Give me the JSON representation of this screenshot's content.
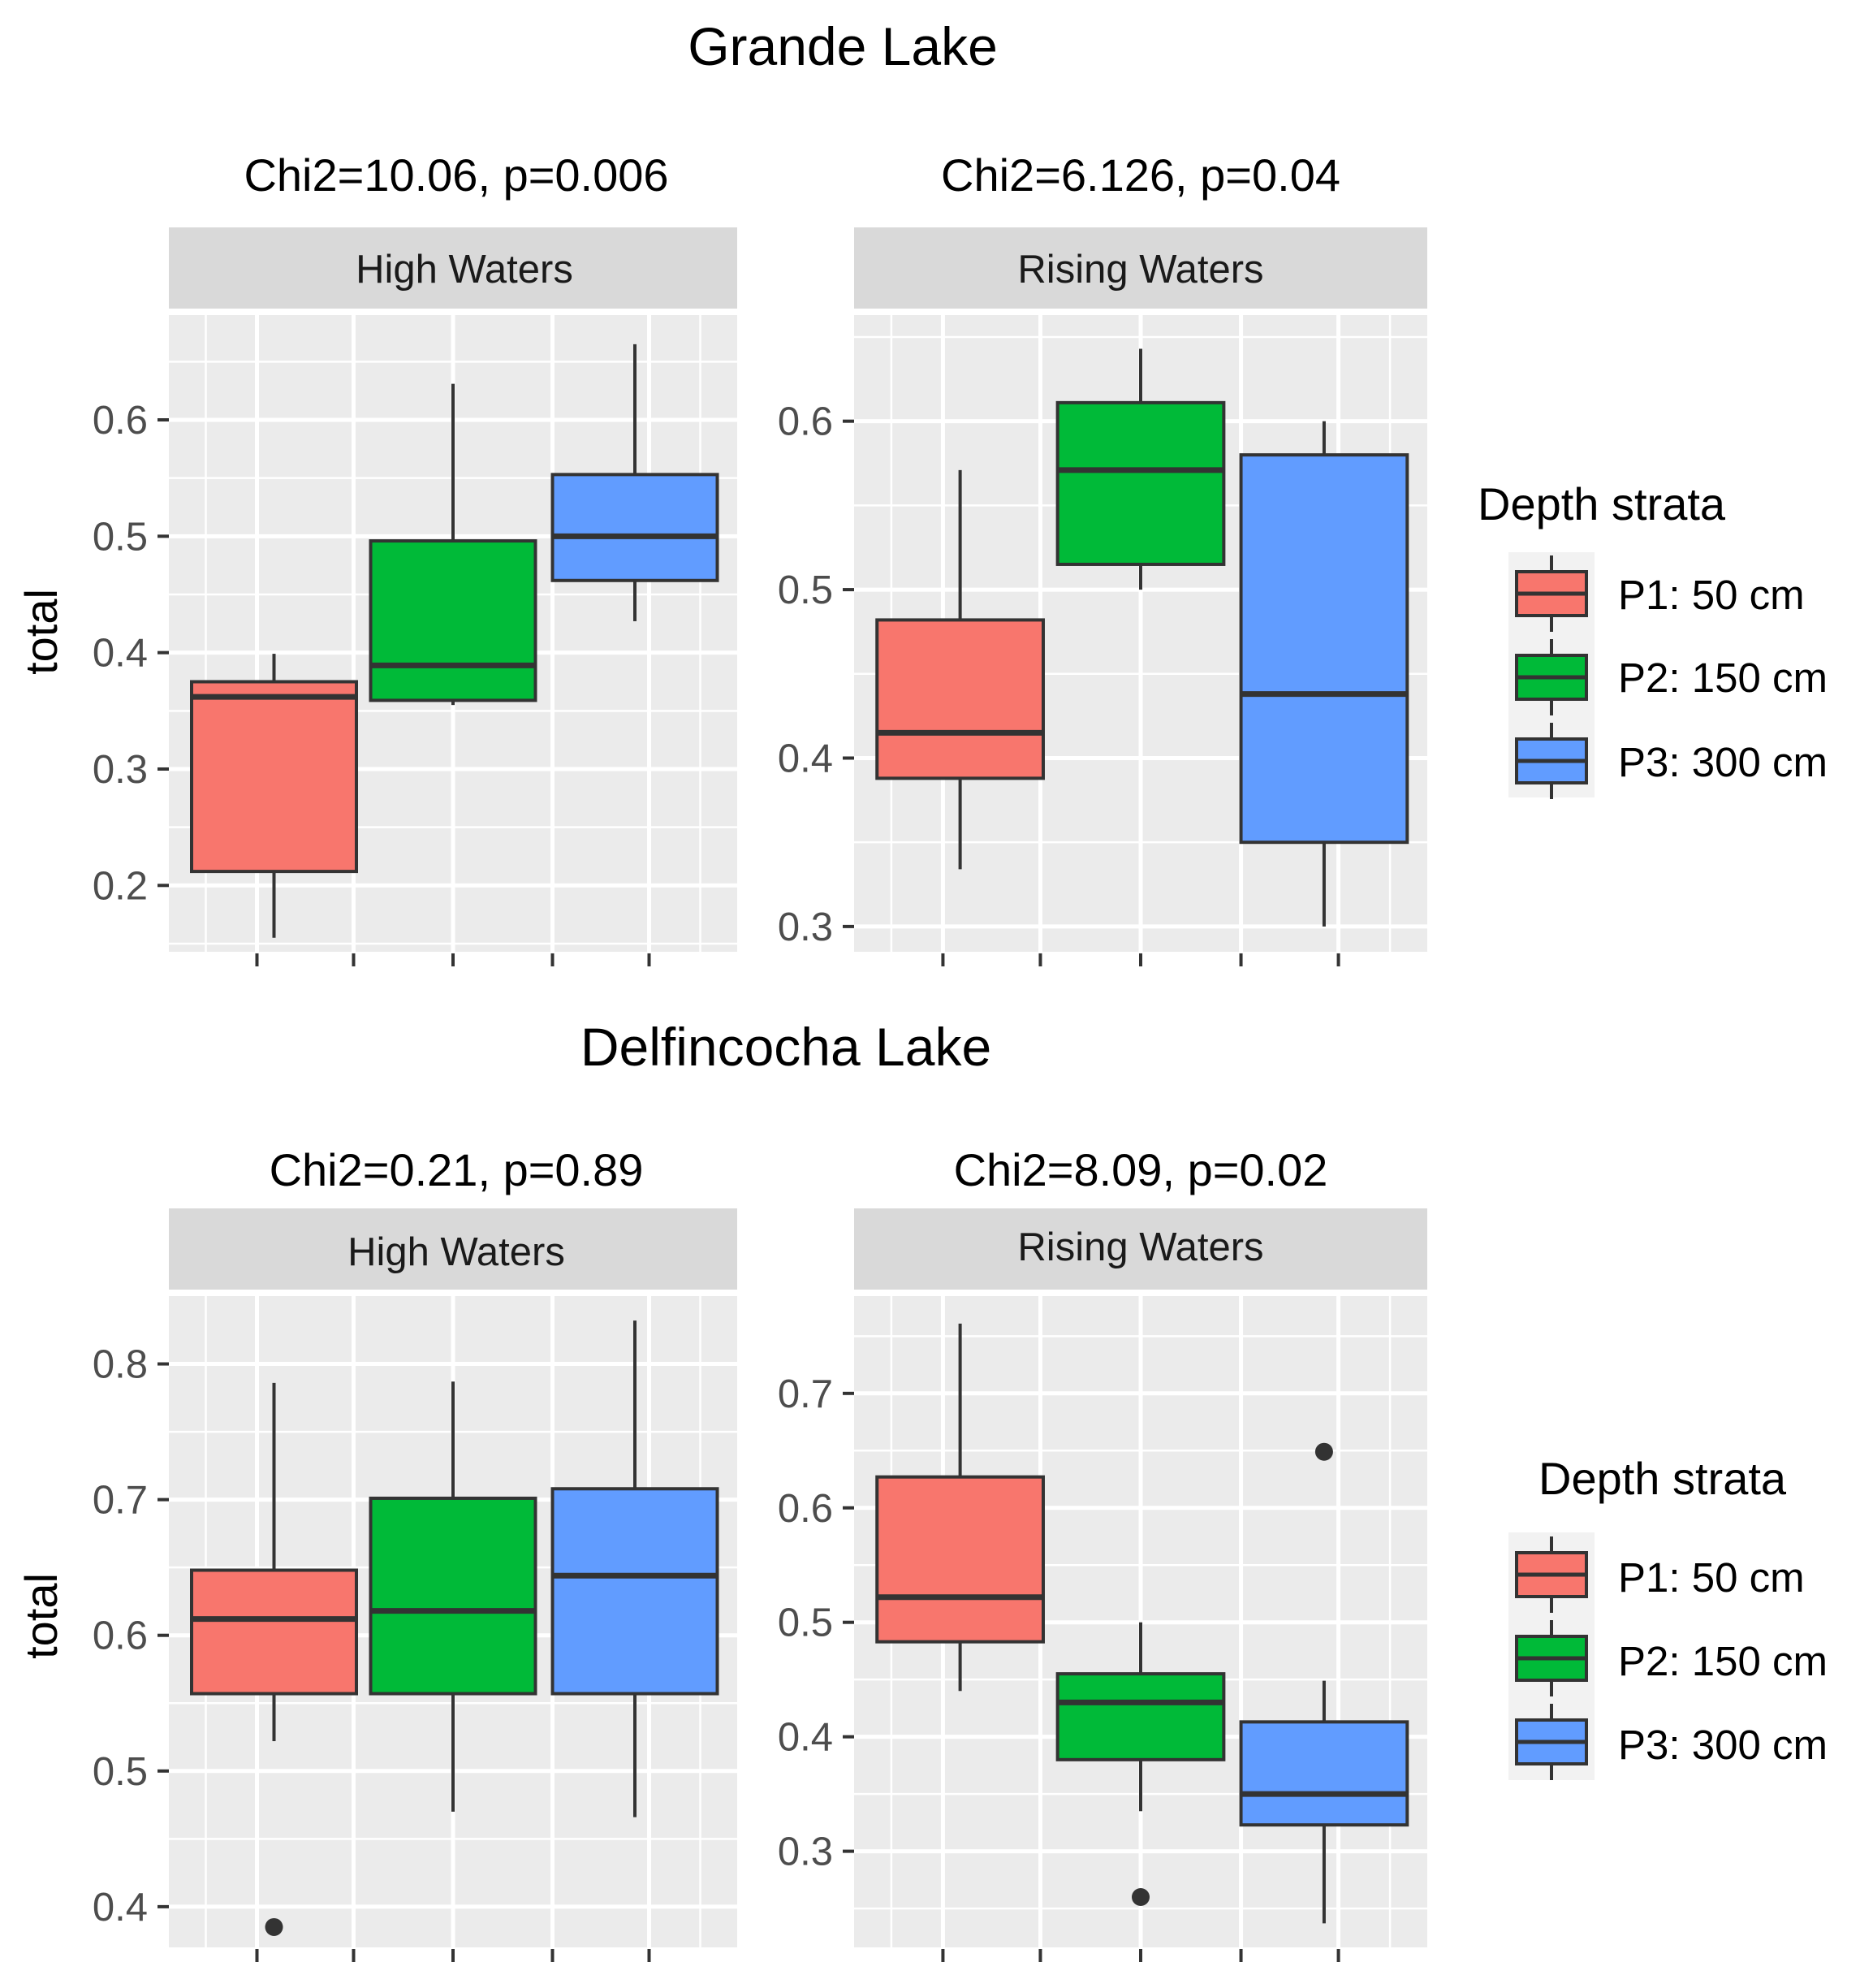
{
  "chart_data": {
    "type": "boxplot",
    "sections": [
      {
        "title": "Grande Lake",
        "legend": {
          "title": "Depth strata",
          "entries": [
            {
              "label": "P1: 50 cm",
              "color": "#F8766D"
            },
            {
              "label": "P2: 150 cm",
              "color": "#00BA38"
            },
            {
              "label": "P3: 300 cm",
              "color": "#619CFF"
            }
          ]
        },
        "panels": [
          {
            "subtitle": "Chi2=10.06, p=0.006",
            "strip": "High Waters",
            "ylabel": "total",
            "ylim": [
              0.143,
              0.69
            ],
            "yticks": [
              0.2,
              0.3,
              0.4,
              0.5,
              0.6
            ],
            "ytick_labels": [
              "0.2",
              "0.3",
              "0.4",
              "0.5",
              "0.6"
            ],
            "boxes": [
              {
                "group": "P1: 50 cm",
                "color": "#F8766D",
                "min": 0.155,
                "q1": 0.212,
                "median": 0.362,
                "q3": 0.375,
                "max": 0.399,
                "outliers": []
              },
              {
                "group": "P2: 150 cm",
                "color": "#00BA38",
                "min": 0.355,
                "q1": 0.359,
                "median": 0.389,
                "q3": 0.496,
                "max": 0.631,
                "outliers": []
              },
              {
                "group": "P3: 300 cm",
                "color": "#619CFF",
                "min": 0.427,
                "q1": 0.462,
                "median": 0.5,
                "q3": 0.553,
                "max": 0.665,
                "outliers": []
              }
            ]
          },
          {
            "subtitle": "Chi2=6.126, p=0.04",
            "strip": "Rising Waters",
            "ylabel": "",
            "ylim": [
              0.285,
              0.663
            ],
            "yticks": [
              0.3,
              0.4,
              0.5,
              0.6
            ],
            "ytick_labels": [
              "0.3",
              "0.4",
              "0.5",
              "0.6"
            ],
            "boxes": [
              {
                "group": "P1: 50 cm",
                "color": "#F8766D",
                "min": 0.334,
                "q1": 0.388,
                "median": 0.415,
                "q3": 0.482,
                "max": 0.571,
                "outliers": []
              },
              {
                "group": "P2: 150 cm",
                "color": "#00BA38",
                "min": 0.5,
                "q1": 0.515,
                "median": 0.571,
                "q3": 0.611,
                "max": 0.643,
                "outliers": []
              },
              {
                "group": "P3: 300 cm",
                "color": "#619CFF",
                "min": 0.3,
                "q1": 0.35,
                "median": 0.438,
                "q3": 0.58,
                "max": 0.6,
                "outliers": []
              }
            ]
          }
        ]
      },
      {
        "title": "Delfincocha Lake",
        "legend": {
          "title": "Depth strata",
          "entries": [
            {
              "label": "P1: 50 cm",
              "color": "#F8766D"
            },
            {
              "label": "P2: 150 cm",
              "color": "#00BA38"
            },
            {
              "label": "P3: 300 cm",
              "color": "#619CFF"
            }
          ]
        },
        "panels": [
          {
            "subtitle": "Chi2=0.21, p=0.89",
            "strip": "High Waters",
            "ylabel": "total",
            "ylim": [
              0.37,
              0.85
            ],
            "yticks": [
              0.4,
              0.5,
              0.6,
              0.7,
              0.8
            ],
            "ytick_labels": [
              "0.4",
              "0.5",
              "0.6",
              "0.7",
              "0.8"
            ],
            "boxes": [
              {
                "group": "P1: 50 cm",
                "color": "#F8766D",
                "min": 0.522,
                "q1": 0.557,
                "median": 0.612,
                "q3": 0.648,
                "max": 0.786,
                "outliers": [
                  0.385
                ]
              },
              {
                "group": "P2: 150 cm",
                "color": "#00BA38",
                "min": 0.47,
                "q1": 0.557,
                "median": 0.618,
                "q3": 0.701,
                "max": 0.787,
                "outliers": []
              },
              {
                "group": "P3: 300 cm",
                "color": "#619CFF",
                "min": 0.466,
                "q1": 0.557,
                "median": 0.644,
                "q3": 0.708,
                "max": 0.832,
                "outliers": []
              }
            ]
          },
          {
            "subtitle": "Chi2=8.09, p=0.02",
            "strip": "Rising Waters",
            "ylabel": "",
            "ylim": [
              0.216,
              0.785
            ],
            "yticks": [
              0.3,
              0.4,
              0.5,
              0.6,
              0.7
            ],
            "ytick_labels": [
              "0.3",
              "0.4",
              "0.5",
              "0.6",
              "0.7"
            ],
            "boxes": [
              {
                "group": "P1: 50 cm",
                "color": "#F8766D",
                "min": 0.44,
                "q1": 0.483,
                "median": 0.522,
                "q3": 0.627,
                "max": 0.761,
                "outliers": []
              },
              {
                "group": "P2: 150 cm",
                "color": "#00BA38",
                "min": 0.335,
                "q1": 0.38,
                "median": 0.43,
                "q3": 0.455,
                "max": 0.5,
                "outliers": [
                  0.26
                ]
              },
              {
                "group": "P3: 300 cm",
                "color": "#619CFF",
                "min": 0.237,
                "q1": 0.323,
                "median": 0.35,
                "q3": 0.413,
                "max": 0.449,
                "outliers": [
                  0.649
                ]
              }
            ]
          }
        ]
      }
    ]
  }
}
